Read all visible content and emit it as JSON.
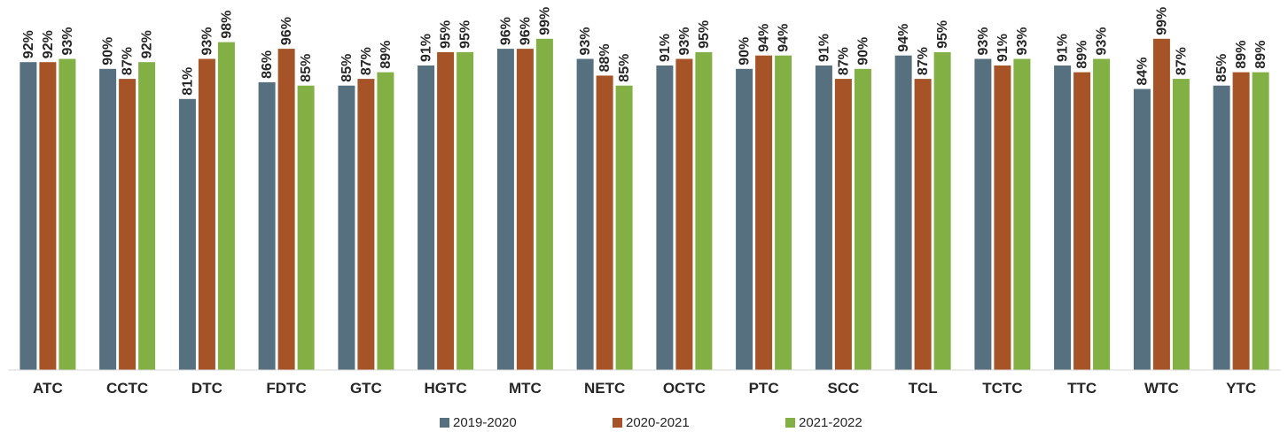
{
  "chart_data": {
    "type": "bar",
    "categories": [
      "ATC",
      "CCTC",
      "DTC",
      "FDTC",
      "GTC",
      "HGTC",
      "MTC",
      "NETC",
      "OCTC",
      "PTC",
      "SCC",
      "TCL",
      "TCTC",
      "TTC",
      "WTC",
      "YTC"
    ],
    "series": [
      {
        "name": "2019-2020",
        "color": "#56707f",
        "values": [
          92,
          90,
          81,
          86,
          85,
          91,
          96,
          93,
          91,
          90,
          91,
          94,
          93,
          91,
          84,
          85
        ]
      },
      {
        "name": "2020-2021",
        "color": "#a65427",
        "values": [
          92,
          87,
          93,
          96,
          87,
          95,
          96,
          88,
          93,
          94,
          87,
          87,
          91,
          89,
          99,
          89
        ]
      },
      {
        "name": "2021-2022",
        "color": "#83b044",
        "values": [
          93,
          92,
          98,
          85,
          89,
          95,
          99,
          85,
          95,
          94,
          90,
          95,
          93,
          93,
          87,
          89
        ]
      }
    ],
    "value_suffix": "%",
    "ylim": [
      0,
      100
    ],
    "grid": false,
    "legend_position": "bottom"
  }
}
